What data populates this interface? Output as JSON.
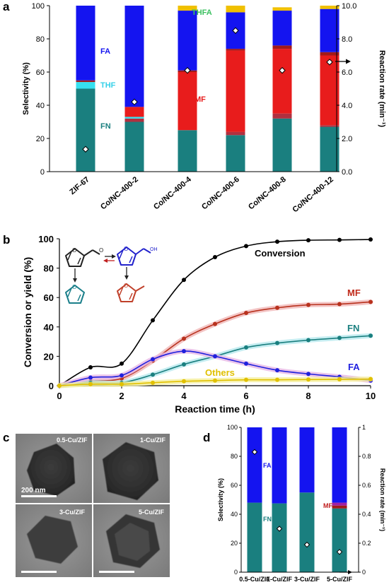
{
  "panels": {
    "a": "a",
    "b": "b",
    "c": "c",
    "d": "d"
  },
  "colors": {
    "FN": "#1a7f7f",
    "THF": "#35e0f0",
    "MF": "#e81c1c",
    "MF_dark": "#a01a1a",
    "FA": "#1414f0",
    "THFA": "#f0c000",
    "others_dark": "#b03040"
  },
  "chart_data": [
    {
      "id": "a",
      "type": "bar",
      "stacked": true,
      "categories": [
        "ZIF-67",
        "Co/NC-400-2",
        "Co/NC-400-4",
        "Co/NC-400-6",
        "Co/NC-400-8",
        "Co/NC-400-12"
      ],
      "series": [
        {
          "name": "FN",
          "values": [
            50,
            30,
            25,
            22,
            32,
            27
          ]
        },
        {
          "name": "",
          "values": [
            0,
            2,
            0,
            2,
            3,
            1
          ]
        },
        {
          "name": "THF",
          "values": [
            4,
            1,
            0,
            0,
            0,
            0
          ]
        },
        {
          "name": "MF",
          "values": [
            0,
            6,
            35,
            49,
            39,
            42
          ]
        },
        {
          "name": "",
          "values": [
            1,
            0,
            1,
            1,
            2,
            2
          ]
        },
        {
          "name": "FA",
          "values": [
            45,
            61,
            36,
            22,
            21,
            26
          ]
        },
        {
          "name": "THFA",
          "values": [
            0,
            0,
            3,
            4,
            2,
            2
          ]
        }
      ],
      "rate": [
        1.35,
        4.2,
        6.1,
        8.5,
        6.1,
        6.6
      ],
      "ylabel": "Selectivity (%)",
      "y2label": "Reaction rate (min⁻¹)",
      "ylim": [
        0,
        100
      ],
      "yticks": [
        "0",
        "20",
        "40",
        "60",
        "80",
        "100"
      ],
      "y2lim": [
        0,
        10
      ],
      "y2ticks": [
        "0.0",
        "2.0",
        "4.0",
        "6.0",
        "8.0",
        "10.0"
      ],
      "annotations": [
        "FA",
        "THF",
        "FN",
        "MF",
        "THFA"
      ]
    },
    {
      "id": "b",
      "type": "line",
      "x": [
        0,
        1,
        2,
        3,
        4,
        5,
        6,
        7,
        8,
        9,
        10
      ],
      "series": [
        {
          "name": "Conversion",
          "values": [
            0,
            12.5,
            15,
            44.5,
            72,
            87.5,
            95,
            98,
            99,
            99.2,
            99.5
          ]
        },
        {
          "name": "MF",
          "values": [
            0,
            3,
            5,
            17,
            32,
            42,
            49.5,
            53,
            55,
            55.5,
            57
          ]
        },
        {
          "name": "FN",
          "values": [
            0,
            2,
            2,
            7.5,
            14.5,
            20,
            26,
            29,
            31,
            32.5,
            34
          ]
        },
        {
          "name": "FA",
          "values": [
            0,
            5.5,
            7,
            18,
            23.5,
            20,
            15,
            10.5,
            8,
            6,
            3.5
          ]
        },
        {
          "name": "Others",
          "values": [
            0,
            1,
            1,
            2,
            3,
            3.5,
            4,
            4,
            4.2,
            4.3,
            4.5
          ]
        }
      ],
      "xlabel": "Reaction time (h)",
      "ylabel": "Conversion or yield (%)",
      "xlim": [
        0,
        10
      ],
      "xticks": [
        "0",
        "2",
        "4",
        "6",
        "8",
        "10"
      ],
      "ylim": [
        0,
        100
      ],
      "yticks": [
        "0",
        "20",
        "40",
        "60",
        "80",
        "100"
      ]
    },
    {
      "id": "d",
      "type": "bar",
      "stacked": true,
      "categories": [
        "0.5-Cu/ZIF",
        "1-Cu/ZIF",
        "3-Cu/ZIF",
        "5-Cu/ZIF"
      ],
      "series": [
        {
          "name": "FN",
          "values": [
            48,
            47.5,
            55,
            44
          ]
        },
        {
          "name": "MF",
          "values": [
            0,
            0,
            0,
            2
          ]
        },
        {
          "name": "",
          "values": [
            0,
            0,
            0,
            2
          ]
        },
        {
          "name": "FA",
          "values": [
            52,
            52.5,
            45,
            52
          ]
        }
      ],
      "rate": [
        0.83,
        0.3,
        0.19,
        0.14
      ],
      "ylabel": "Selectivity (%)",
      "y2label": "Reaction rate (min⁻¹)",
      "ylim": [
        0,
        100
      ],
      "yticks": [
        "0",
        "20",
        "40",
        "60",
        "80",
        "100"
      ],
      "y2lim": [
        0,
        1
      ],
      "y2ticks": [
        "0",
        "0.2",
        "0.4",
        "0.6",
        "0.8",
        "1"
      ],
      "annotations": [
        "FA",
        "FN",
        "MF"
      ]
    }
  ],
  "tem": {
    "labels": [
      "0.5-Cu/ZIF",
      "1-Cu/ZIF",
      "3-Cu/ZIF",
      "5-Cu/ZIF"
    ],
    "scale_bar": "200 nm"
  }
}
